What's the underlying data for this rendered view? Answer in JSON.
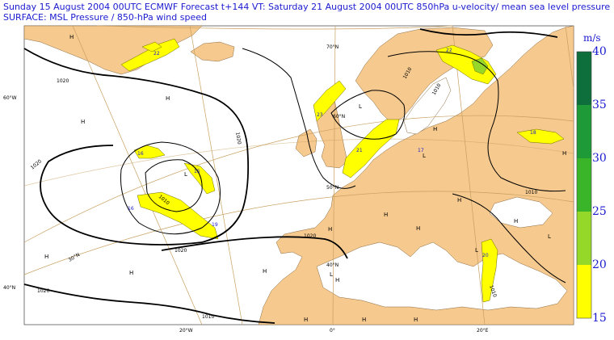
{
  "header": {
    "line1": "Sunday 15 August 2004 00UTC ECMWF  Forecast t+144 VT: Saturday 21 August 2004 00UTC 850hPa u-velocity/  mean sea level pressure",
    "line2": "SURFACE: MSL Pressure   / 850-hPa wind speed"
  },
  "colorbar": {
    "unit": "m/s",
    "ticks": [
      "40",
      "35",
      "30",
      "25",
      "20",
      "15"
    ],
    "bands": [
      {
        "from": 35,
        "to": 40,
        "color": "#0e6e3c"
      },
      {
        "from": 30,
        "to": 35,
        "color": "#1e9a38"
      },
      {
        "from": 25,
        "to": 30,
        "color": "#3ab52a"
      },
      {
        "from": 20,
        "to": 25,
        "color": "#96d82a"
      },
      {
        "from": 15,
        "to": 20,
        "color": "#ffff00"
      }
    ]
  },
  "colors": {
    "land": "#f6c98f",
    "sea": "#ffffff",
    "graticule": "#c8a060",
    "isobar": "#000000",
    "text": "#1a1ad0"
  },
  "map_labels": {
    "lon_60w": "60°W",
    "lat_60n": "60°N",
    "lat_40n": "40°N",
    "lat_40n_b": "40°N",
    "lat_50n": "50°N",
    "lat_70n": "70°N",
    "lat_30n": "30°N",
    "lon_20w": "20°W",
    "lon_0": "0°",
    "lon_20e": "20°E"
  },
  "pressure_centers": [
    {
      "id": "h1",
      "text": "H"
    },
    {
      "id": "h2",
      "text": "H"
    },
    {
      "id": "h3",
      "text": "H"
    },
    {
      "id": "h4",
      "text": "H"
    },
    {
      "id": "h5",
      "text": "H"
    },
    {
      "id": "h6",
      "text": "H"
    },
    {
      "id": "h7",
      "text": "H"
    },
    {
      "id": "h8",
      "text": "H"
    },
    {
      "id": "h9",
      "text": "H"
    },
    {
      "id": "h10",
      "text": "H"
    },
    {
      "id": "h11",
      "text": "H"
    },
    {
      "id": "h12",
      "text": "H"
    },
    {
      "id": "h13",
      "text": "H"
    },
    {
      "id": "h14",
      "text": "H"
    },
    {
      "id": "h15",
      "text": "H"
    },
    {
      "id": "h16",
      "text": "H"
    },
    {
      "id": "h17",
      "text": "H"
    },
    {
      "id": "l1",
      "text": "L"
    },
    {
      "id": "l2",
      "text": "L"
    },
    {
      "id": "l3",
      "text": "L"
    },
    {
      "id": "l4",
      "text": "L"
    },
    {
      "id": "l5",
      "text": "L"
    },
    {
      "id": "l6",
      "text": "L"
    }
  ],
  "isobar_labels": {
    "b1020_a": "1020",
    "b1020_b": "1020",
    "b1020_c": "1020",
    "b1020_d": "1020",
    "b1020_e": "1020",
    "b1020_f": "1020",
    "b1010_a": "1010",
    "b1010_b": "1010",
    "b1010_c": "1010",
    "b1010_d": "1010",
    "b1010_e": "1010",
    "b1010_f": "1010"
  },
  "wind_values": {
    "w22": "22",
    "w16": "16",
    "w15": "15",
    "w16b": "16",
    "w19": "19",
    "w23": "23",
    "w21": "21",
    "w17": "17",
    "w18": "18",
    "w22b": "22",
    "w20": "20"
  }
}
